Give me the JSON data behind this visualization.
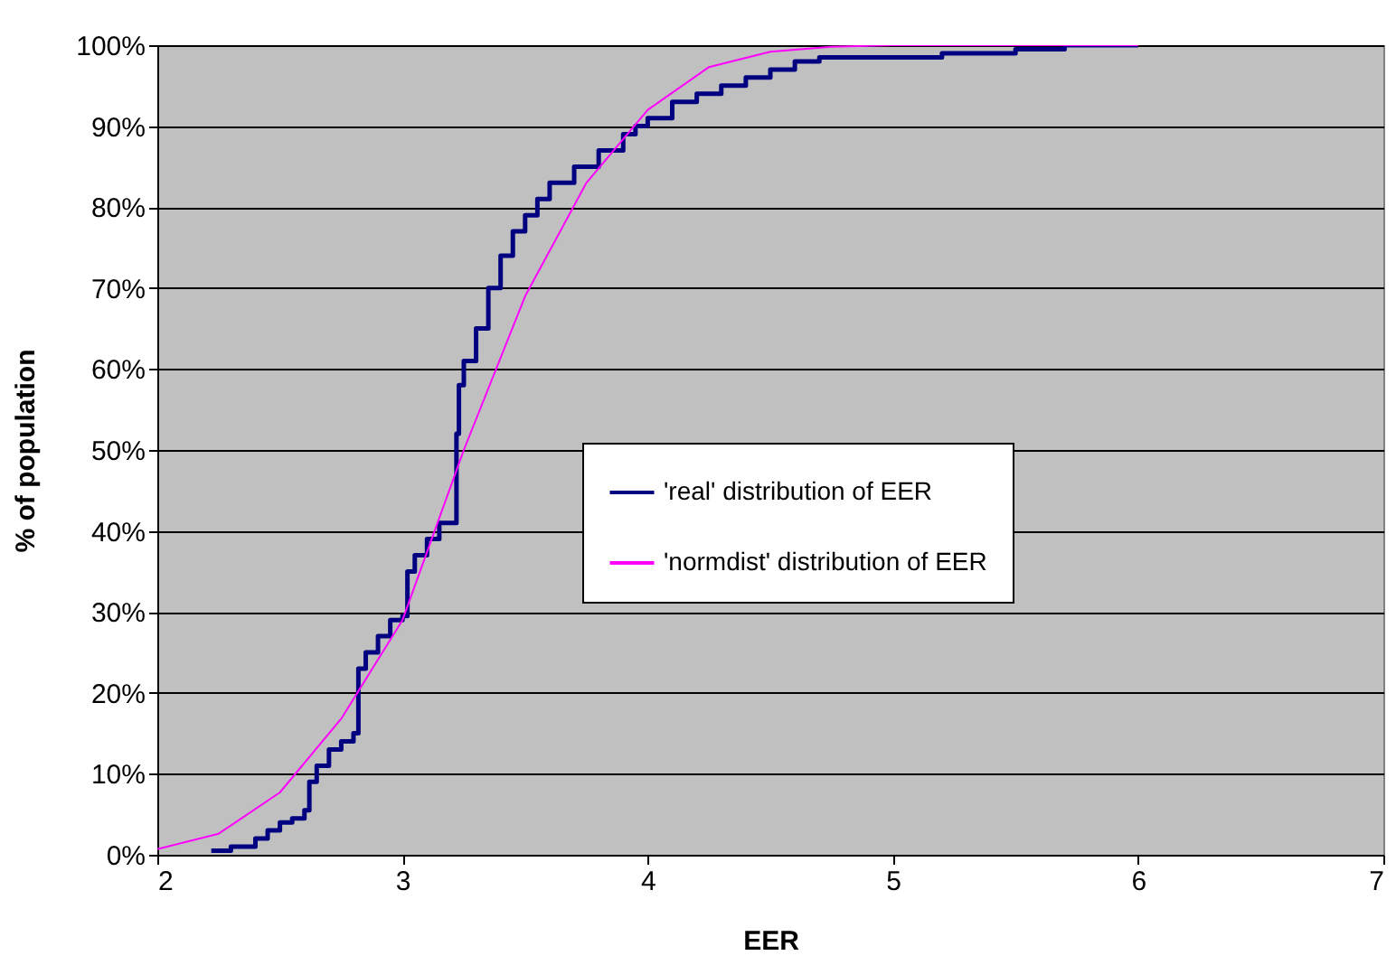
{
  "chart_data": {
    "type": "line",
    "xlabel": "EER",
    "ylabel": "% of population",
    "xlim": [
      2,
      7
    ],
    "xticks": [
      2,
      3,
      4,
      5,
      6,
      7
    ],
    "ylim": [
      0,
      100
    ],
    "yticks": [
      {
        "value": 0,
        "label": "0%"
      },
      {
        "value": 10,
        "label": "10%"
      },
      {
        "value": 20,
        "label": "20%"
      },
      {
        "value": 30,
        "label": "30%"
      },
      {
        "value": 40,
        "label": "40%"
      },
      {
        "value": 50,
        "label": "50%"
      },
      {
        "value": 60,
        "label": "60%"
      },
      {
        "value": 70,
        "label": "70%"
      },
      {
        "value": 80,
        "label": "80%"
      },
      {
        "value": 90,
        "label": "90%"
      },
      {
        "value": 100,
        "label": "100%"
      }
    ],
    "grid": "y",
    "legend": "right",
    "marker": "none",
    "series": [
      {
        "name": "'real' distribution of EER",
        "color": "#000080",
        "type": "step",
        "x": [
          2.22,
          2.3,
          2.4,
          2.45,
          2.5,
          2.55,
          2.6,
          2.62,
          2.65,
          2.7,
          2.75,
          2.8,
          2.82,
          2.85,
          2.9,
          2.95,
          3.0,
          3.02,
          3.05,
          3.1,
          3.15,
          3.22,
          3.23,
          3.25,
          3.3,
          3.35,
          3.4,
          3.45,
          3.5,
          3.55,
          3.6,
          3.7,
          3.8,
          3.9,
          3.95,
          4.0,
          4.1,
          4.2,
          4.3,
          4.4,
          4.5,
          4.6,
          4.7,
          5.2,
          5.5,
          5.7,
          6.0
        ],
        "values": [
          0.5,
          1,
          2,
          3,
          4,
          4.5,
          5.5,
          9,
          11,
          13,
          14,
          15,
          23,
          25,
          27,
          29,
          29.5,
          35,
          37,
          39,
          41,
          52,
          58,
          61,
          65,
          70,
          74,
          77,
          79,
          81,
          83,
          85,
          87,
          89,
          90,
          91,
          93,
          94,
          95,
          96,
          97,
          98,
          98.5,
          99,
          99.5,
          100,
          100
        ]
      },
      {
        "name": "'normdist' distribution of EER",
        "color": "#ff00ff",
        "x": [
          2,
          2.25,
          2.5,
          2.75,
          3.0,
          3.25,
          3.5,
          3.75,
          4.0,
          4.25,
          4.5,
          4.75,
          5.0,
          5.5,
          6.0
        ],
        "values": [
          0.7,
          2.6,
          7.7,
          16.8,
          29,
          50,
          69,
          83,
          92,
          97.3,
          99.2,
          99.8,
          100,
          100,
          100
        ]
      }
    ]
  }
}
